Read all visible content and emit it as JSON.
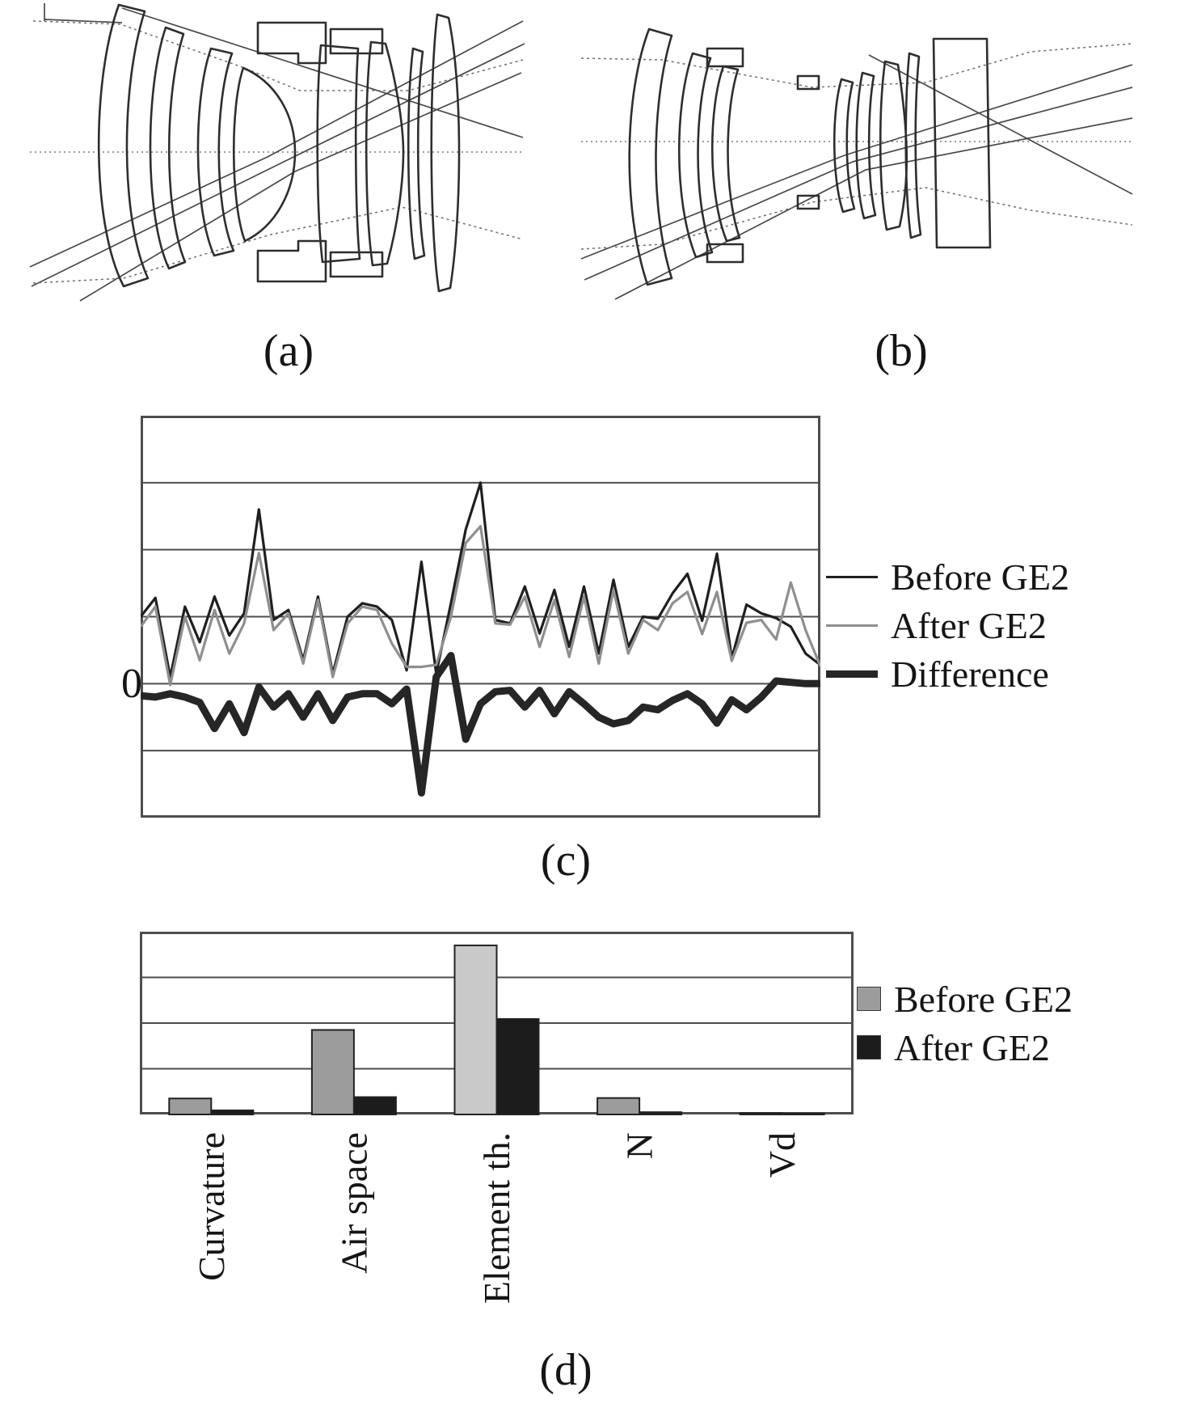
{
  "figure": {
    "captions": {
      "a": "(a)",
      "b": "(b)",
      "c": "(c)",
      "d": "(d)"
    }
  },
  "chart_data": [
    {
      "id": "merit-function-line-chart",
      "type": "line",
      "title": "",
      "ylabel_zero": "0",
      "x_count": 47,
      "ylim": [
        -2,
        4
      ],
      "grid_step": 1,
      "zero_gridline_index": 4,
      "grid": true,
      "legend_position": "right",
      "series": [
        {
          "name": "Before GE2",
          "color": "#1f1f1f",
          "stroke_width": 3.2,
          "values": [
            1.0,
            1.28,
            0.1,
            1.15,
            0.62,
            1.3,
            0.72,
            1.05,
            2.6,
            0.95,
            1.1,
            0.35,
            1.3,
            0.15,
            1.0,
            1.2,
            1.15,
            0.95,
            0.2,
            1.82,
            0.15,
            1.2,
            2.3,
            3.0,
            0.95,
            0.9,
            1.45,
            0.75,
            1.4,
            0.55,
            1.45,
            0.45,
            1.55,
            0.55,
            1.0,
            0.97,
            1.35,
            1.64,
            0.94,
            1.94,
            0.38,
            1.18,
            1.05,
            0.98,
            0.85,
            0.45,
            0.28
          ]
        },
        {
          "name": "After GE2",
          "color": "#8f8f8f",
          "stroke_width": 3.2,
          "values": [
            0.85,
            1.15,
            -0.02,
            1.0,
            0.35,
            1.1,
            0.45,
            0.9,
            1.95,
            0.8,
            1.05,
            0.3,
            1.25,
            0.1,
            0.9,
            1.15,
            1.1,
            0.6,
            0.25,
            0.25,
            0.28,
            1.0,
            2.1,
            2.35,
            0.9,
            0.88,
            1.3,
            0.55,
            1.25,
            0.4,
            1.3,
            0.3,
            1.4,
            0.45,
            0.95,
            0.8,
            1.2,
            1.37,
            0.74,
            1.37,
            0.34,
            0.91,
            0.95,
            0.66,
            1.51,
            0.8,
            0.26
          ]
        },
        {
          "name": "Difference",
          "color": "#262626",
          "stroke_width": 9,
          "values": [
            -0.18,
            -0.2,
            -0.15,
            -0.2,
            -0.28,
            -0.67,
            -0.3,
            -0.73,
            -0.05,
            -0.35,
            -0.15,
            -0.5,
            -0.15,
            -0.55,
            -0.2,
            -0.15,
            -0.15,
            -0.3,
            -0.08,
            -1.63,
            0.1,
            0.42,
            -0.83,
            -0.3,
            -0.12,
            -0.1,
            -0.35,
            -0.1,
            -0.45,
            -0.12,
            -0.3,
            -0.5,
            -0.6,
            -0.55,
            -0.35,
            -0.39,
            -0.25,
            -0.15,
            -0.3,
            -0.59,
            -0.24,
            -0.39,
            -0.2,
            0.04,
            0.02,
            0.0,
            0.0
          ]
        }
      ]
    },
    {
      "id": "parameter-change-bar-chart",
      "type": "bar",
      "title": "",
      "categories": [
        "Curvature",
        "Air space",
        "Element th.",
        "N",
        "Vd"
      ],
      "ylim": [
        0,
        4
      ],
      "grid_step": 1,
      "grid": true,
      "legend_position": "right",
      "series": [
        {
          "name": "Before GE2",
          "color": "#9c9c9c",
          "fill_overrides": {
            "2": "#c9c9c9"
          },
          "values": [
            0.35,
            1.85,
            3.7,
            0.36,
            0.03
          ]
        },
        {
          "name": "After GE2",
          "color": "#1c1c1c",
          "values": [
            0.09,
            0.38,
            2.09,
            0.05,
            0.02
          ]
        }
      ]
    }
  ]
}
